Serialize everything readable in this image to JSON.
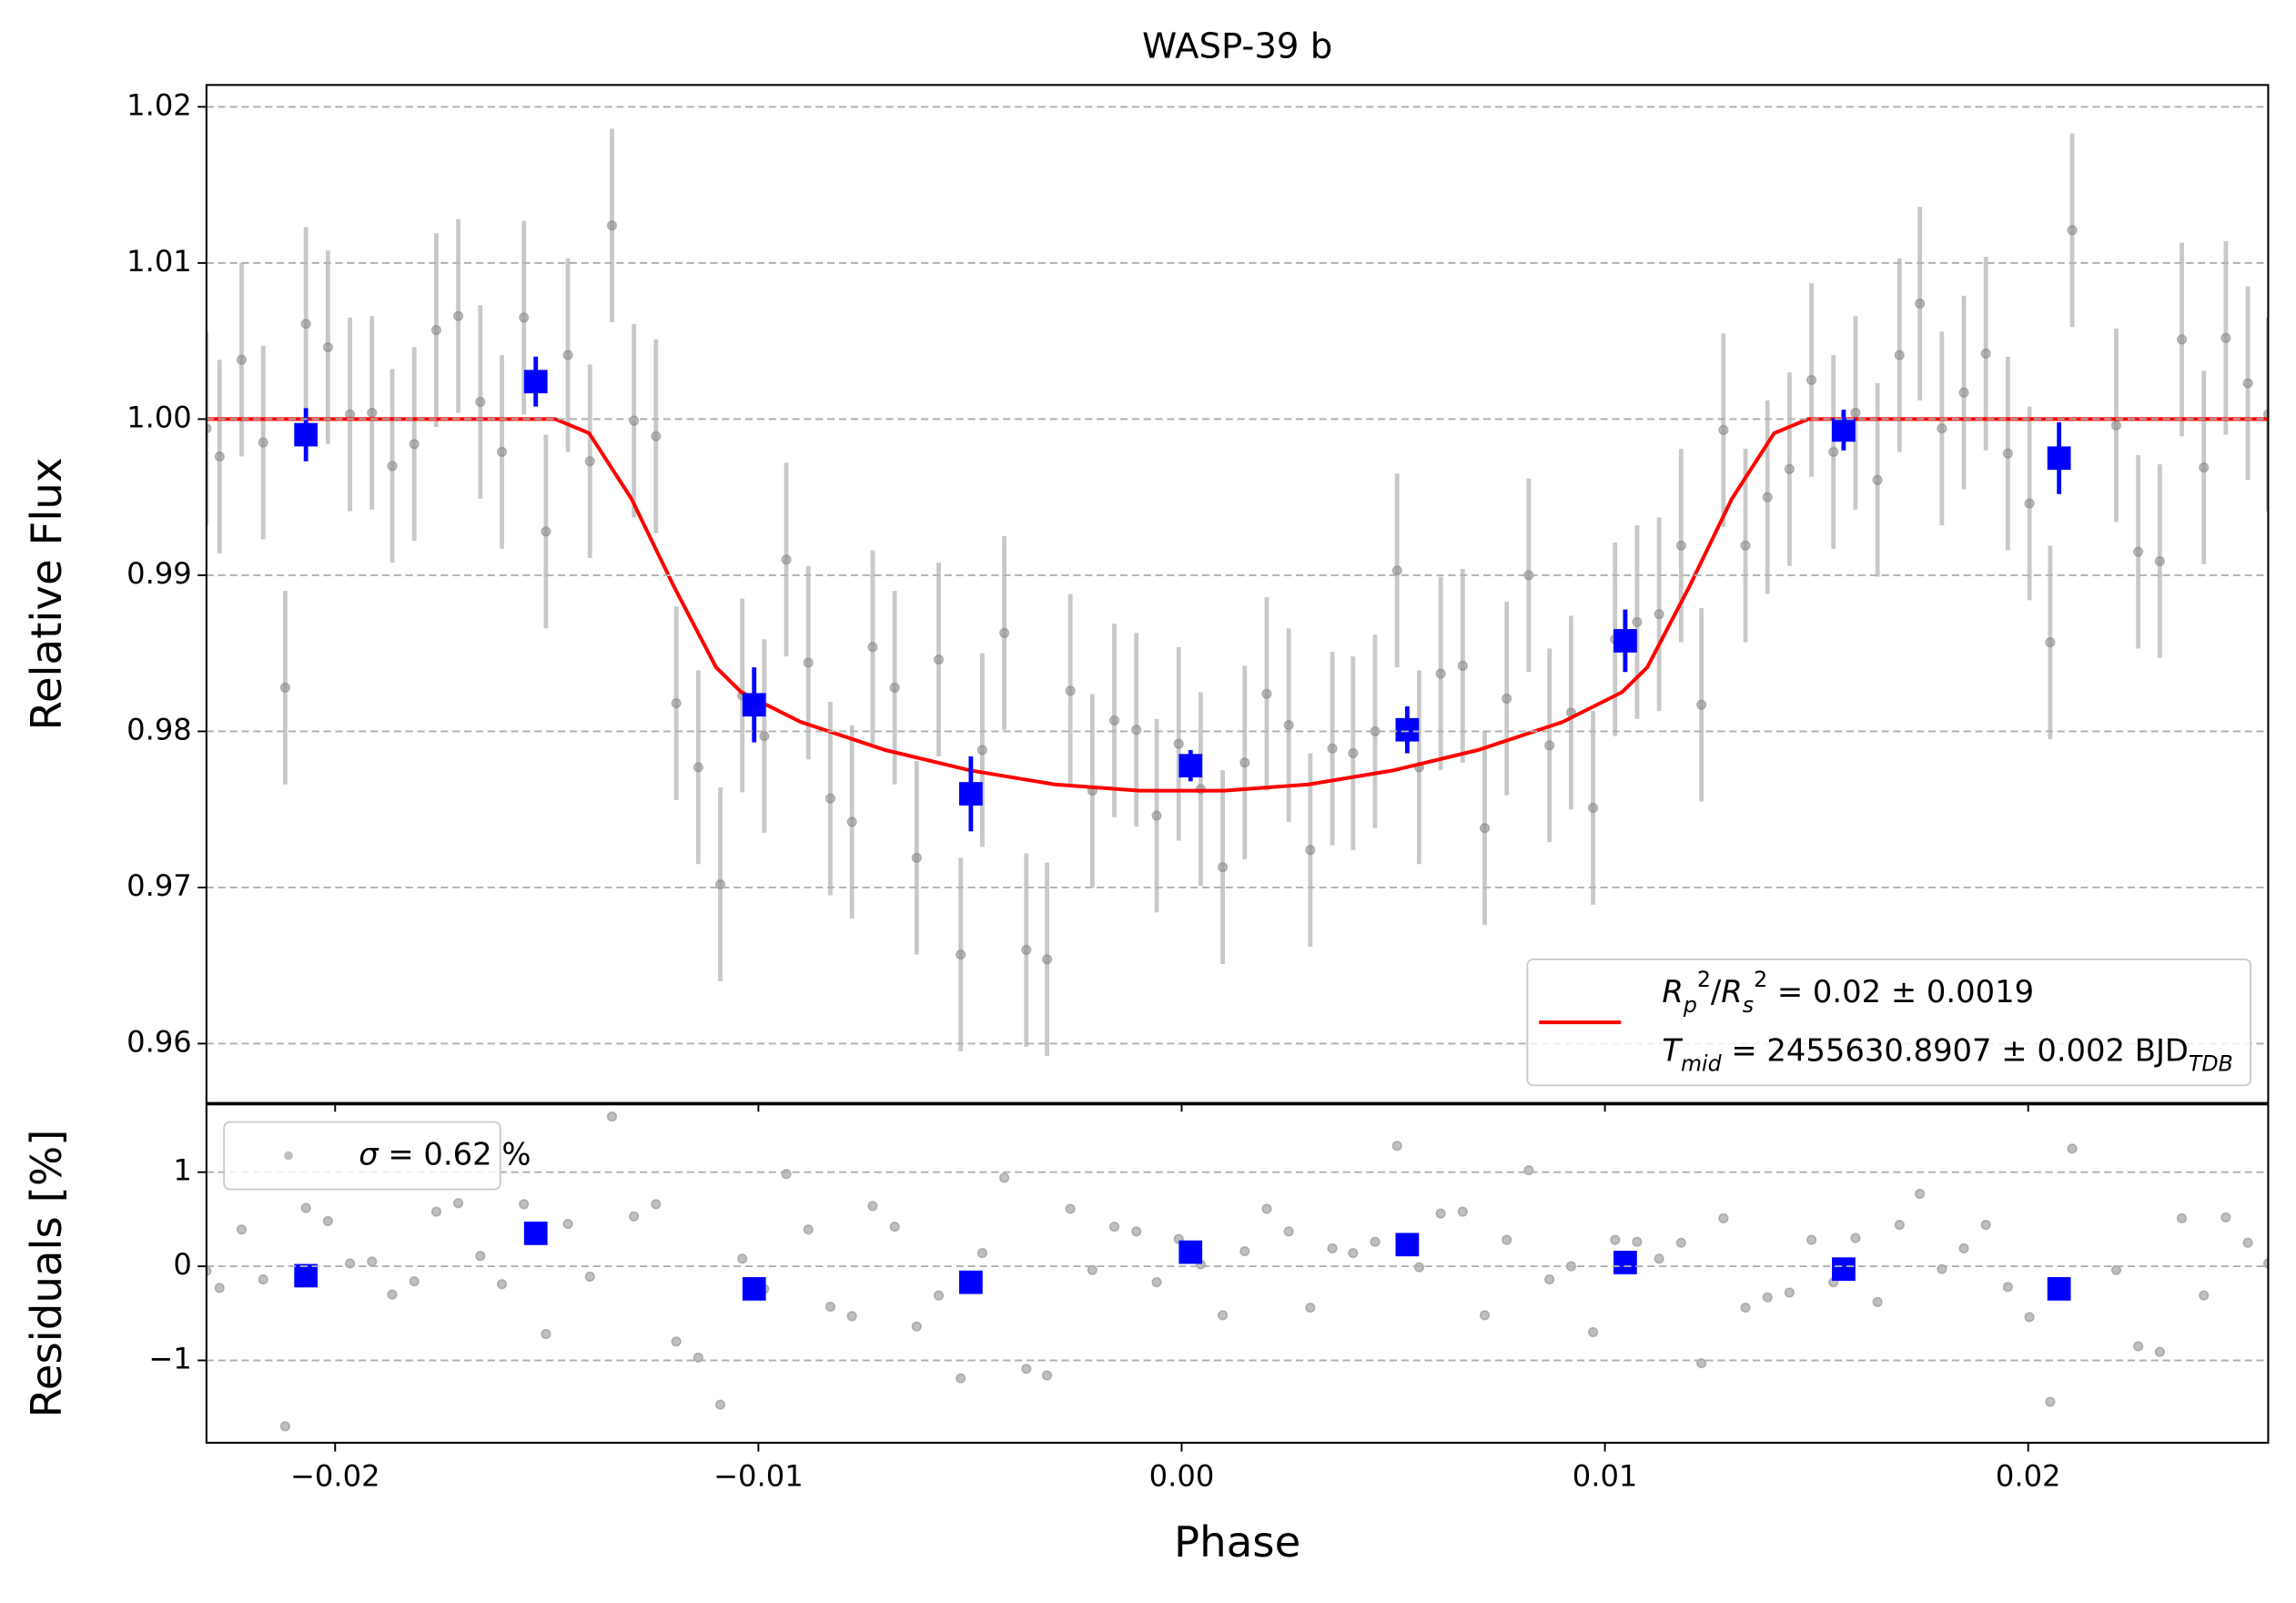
{
  "chart_data": [
    {
      "type": "errorbar",
      "title": "WASP-39 b",
      "ylabel": "Relative Flux",
      "xlim": [
        -0.02304,
        0.02567
      ],
      "ylim": [
        0.9562,
        1.0214
      ],
      "xticks": [
        -0.02,
        -0.01,
        0,
        0.01,
        0.02
      ],
      "show_xtick_labels": false,
      "yticks": [
        0.96,
        0.97,
        0.98,
        0.99,
        {
          "value": 1,
          "label": "1.00"
        },
        1.01,
        1.02
      ],
      "grid": "y",
      "legend_loc": "lower right",
      "series": [
        {
          "marker": "circle",
          "color": "#808080",
          "alpha": 0.5,
          "ecolor": "#c8c8c8",
          "yerr": 0.0062,
          "x": [
            -0.02304,
            -0.02273,
            -0.02221,
            -0.0217,
            -0.02118,
            -0.02069,
            -0.02017,
            -0.01965,
            -0.01913,
            -0.01865,
            -0.01813,
            -0.01761,
            -0.01709,
            -0.01657,
            -0.01606,
            -0.01554,
            -0.01502,
            -0.0145,
            -0.01398,
            -0.01346,
            -0.01294,
            -0.01242,
            -0.01194,
            -0.01142,
            -0.0109,
            -0.01038,
            -0.00986,
            -0.00934,
            -0.00882,
            -0.0083,
            -0.00779,
            -0.0073,
            -0.00678,
            -0.00626,
            -0.00574,
            -0.00522,
            -0.00471,
            -0.00419,
            -0.00367,
            -0.00318,
            -0.00263,
            -0.00211,
            -0.00159,
            -0.00107,
            -0.00059,
            -7e-05,
            0.00045,
            0.00097,
            0.00149,
            0.00201,
            0.00253,
            0.00304,
            0.00356,
            0.00405,
            0.00457,
            0.00509,
            0.00561,
            0.00612,
            0.00664,
            0.00716,
            0.00768,
            0.0082,
            0.00869,
            0.0092,
            0.00972,
            0.01024,
            0.01076,
            0.01128,
            0.0118,
            0.01228,
            0.0128,
            0.01332,
            0.01384,
            0.01436,
            0.01488,
            0.0154,
            0.01592,
            0.01644,
            0.01696,
            0.01744,
            0.01796,
            0.01848,
            0.019,
            0.01952,
            0.02003,
            0.02052,
            0.02104,
            0.02208,
            0.0226,
            0.02311,
            0.02363,
            0.02415,
            0.02467,
            0.02519,
            0.02567
          ],
          "values": [
            0.9994,
            0.9976,
            1.0038,
            0.9985,
            0.9828,
            1.0061,
            1.0046,
            1.0003,
            1.0004,
            0.997,
            0.9984,
            1.0057,
            1.0066,
            1.0011,
            0.9979,
            1.0065,
            0.9928,
            1.0041,
            0.9973,
            1.0124,
            0.9999,
            0.9989,
            0.9818,
            0.9777,
            0.9702,
            0.9823,
            0.9797,
            0.991,
            0.9844,
            0.9757,
            0.9742,
            0.9854,
            0.9828,
            0.9719,
            0.9846,
            0.9657,
            0.9788,
            0.9863,
            0.966,
            0.9654,
            0.9826,
            0.9762,
            0.9807,
            0.9801,
            0.9746,
            0.9792,
            0.9763,
            0.9713,
            0.978,
            0.9824,
            0.9804,
            0.9724,
            0.9789,
            0.9786,
            0.98,
            0.9903,
            0.9777,
            0.9837,
            0.9842,
            0.9738,
            0.9821,
            0.99,
            0.9791,
            0.9812,
            0.9751,
            0.9859,
            0.987,
            0.9875,
            0.9919,
            0.9817,
            0.9993,
            0.9919,
            0.995,
            0.9968,
            1.0025,
            0.9979,
            1.0004,
            0.9961,
            1.0041,
            1.0074,
            0.9994,
            1.0017,
            1.0042,
            0.9978,
            0.9946,
            0.9857,
            1.0121,
            0.9996,
            0.9915,
            0.9909,
            1.0051,
            0.9969,
            1.0052,
            1.0023,
            1.0003
          ]
        },
        {
          "marker": "line",
          "color": "#ff0000",
          "name": [
            [
              {
                "text": "R",
                "style": "italic"
              },
              {
                "text": "p",
                "style": "italic-sub"
              },
              {
                "text": "2",
                "style": "sup"
              },
              {
                "text": "/",
                "style": "normal"
              },
              {
                "text": "R",
                "style": "italic"
              },
              {
                "text": "s",
                "style": "italic-sub"
              },
              {
                "text": "2",
                "style": "sup"
              },
              {
                "text": " = 0.02 ± 0.0019",
                "style": "normal"
              }
            ],
            [
              {
                "text": "T",
                "style": "italic"
              },
              {
                "text": "mid",
                "style": "italic-sub"
              },
              {
                "text": " = 2455630.8907 ± 0.002 BJD",
                "style": "normal"
              },
              {
                "text": "TDB",
                "style": "italic-sub"
              }
            ]
          ],
          "x": [
            -0.02304,
            -0.0148,
            -0.014,
            -0.013,
            -0.012,
            -0.011,
            -0.0104,
            -0.009,
            -0.007,
            -0.005,
            -0.003,
            -0.001,
            0.001,
            0.003,
            0.005,
            0.007,
            0.009,
            0.0104,
            0.011,
            0.012,
            0.013,
            0.014,
            0.0148,
            0.02567
          ],
          "values": [
            1,
            1,
            0.9991,
            0.9949,
            0.9893,
            0.9841,
            0.9825,
            0.9806,
            0.9788,
            0.9775,
            0.9766,
            0.9762,
            0.9762,
            0.9766,
            0.9775,
            0.9788,
            0.9806,
            0.9825,
            0.9841,
            0.9893,
            0.9949,
            0.9991,
            1,
            1
          ]
        },
        {
          "marker": "square",
          "color": "#0000ff",
          "ecolor": "#0000ff",
          "x": [
            -0.02069,
            -0.01526,
            -0.0101,
            -0.00498,
            0.00021,
            0.00533,
            0.01048,
            0.01564,
            0.02073
          ],
          "values": [
            0.999,
            1.0024,
            0.9817,
            0.976,
            0.9778,
            0.9801,
            0.9858,
            0.9993,
            0.9975
          ],
          "yerr": [
            0.0017,
            0.0016,
            0.0024,
            0.0024,
            0.001,
            0.0015,
            0.002,
            0.0013,
            0.0023
          ]
        }
      ]
    },
    {
      "type": "scatter",
      "xlabel": "Phase",
      "ylabel": "Residuals [%]",
      "xlim": [
        -0.02304,
        0.02567
      ],
      "ylim": [
        -1.875,
        1.72
      ],
      "xticks": [
        {
          "value": -0.02,
          "label": "−0.02"
        },
        {
          "value": -0.01,
          "label": "−0.01"
        },
        {
          "value": 0,
          "label": "0.00"
        },
        0.01,
        0.02
      ],
      "yticks": [
        {
          "value": -1,
          "label": "−1"
        },
        0,
        1
      ],
      "grid": "y",
      "legend_loc": "upper left",
      "series": [
        {
          "marker": "circle",
          "color": "#808080",
          "alpha": 0.5,
          "name": [
            [
              {
                "text": "σ",
                "style": "italic"
              },
              {
                "text": " = 0.62 %",
                "style": "normal"
              }
            ]
          ],
          "x": [
            -0.02304,
            -0.02273,
            -0.02221,
            -0.0217,
            -0.02118,
            -0.02069,
            -0.02017,
            -0.01965,
            -0.01913,
            -0.01865,
            -0.01813,
            -0.01761,
            -0.01709,
            -0.01657,
            -0.01606,
            -0.01554,
            -0.01502,
            -0.0145,
            -0.01398,
            -0.01346,
            -0.01294,
            -0.01242,
            -0.01194,
            -0.01142,
            -0.0109,
            -0.01038,
            -0.00986,
            -0.00934,
            -0.00882,
            -0.0083,
            -0.00779,
            -0.0073,
            -0.00678,
            -0.00626,
            -0.00574,
            -0.00522,
            -0.00471,
            -0.00419,
            -0.00367,
            -0.00318,
            -0.00263,
            -0.00211,
            -0.00159,
            -0.00107,
            -0.00059,
            -7e-05,
            0.00045,
            0.00097,
            0.00149,
            0.00201,
            0.00253,
            0.00304,
            0.00356,
            0.00405,
            0.00457,
            0.00509,
            0.00561,
            0.00612,
            0.00664,
            0.00716,
            0.00768,
            0.0082,
            0.00869,
            0.0092,
            0.00972,
            0.01024,
            0.01076,
            0.01128,
            0.0118,
            0.01228,
            0.0128,
            0.01332,
            0.01384,
            0.01436,
            0.01488,
            0.0154,
            0.01592,
            0.01644,
            0.01696,
            0.01744,
            0.01796,
            0.01848,
            0.019,
            0.01952,
            0.02003,
            0.02052,
            0.02104,
            0.02208,
            0.0226,
            0.02311,
            0.02363,
            0.02415,
            0.02467,
            0.02519,
            0.02567
          ],
          "values": [
            -0.05,
            -0.23,
            0.39,
            -0.14,
            -1.7,
            0.62,
            0.48,
            0.03,
            0.05,
            -0.3,
            -0.16,
            0.58,
            0.67,
            0.11,
            -0.19,
            0.66,
            -0.72,
            0.45,
            -0.11,
            1.59,
            0.53,
            0.66,
            -0.8,
            -0.97,
            -1.47,
            0.08,
            -0.24,
            0.98,
            0.39,
            -0.43,
            -0.53,
            0.64,
            0.42,
            -0.64,
            -0.31,
            -1.19,
            0.14,
            0.94,
            -1.09,
            -1.16,
            0.61,
            -0.04,
            0.42,
            0.37,
            -0.17,
            0.29,
            0.02,
            -0.52,
            0.16,
            0.61,
            0.37,
            -0.44,
            0.19,
            0.14,
            0.26,
            1.28,
            -0.01,
            0.56,
            0.58,
            -0.52,
            0.28,
            1.02,
            -0.14,
            0,
            -0.7,
            0.28,
            0.26,
            0.08,
            0.25,
            -1.03,
            0.51,
            -0.44,
            -0.33,
            -0.28,
            0.28,
            -0.17,
            0.3,
            -0.38,
            0.44,
            0.77,
            -0.03,
            0.19,
            0.44,
            -0.22,
            -0.54,
            -1.44,
            1.25,
            -0.04,
            -0.85,
            -0.91,
            0.51,
            -0.31,
            0.52,
            0.25,
            0.03
          ]
        },
        {
          "marker": "square",
          "color": "#0000ff",
          "x": [
            -0.02069,
            -0.01526,
            -0.0101,
            -0.00498,
            0.00021,
            0.00533,
            0.01048,
            0.01564,
            0.02073
          ],
          "values": [
            -0.1,
            0.35,
            -0.24,
            -0.17,
            0.15,
            0.23,
            0.04,
            -0.03,
            -0.24
          ]
        }
      ]
    }
  ]
}
